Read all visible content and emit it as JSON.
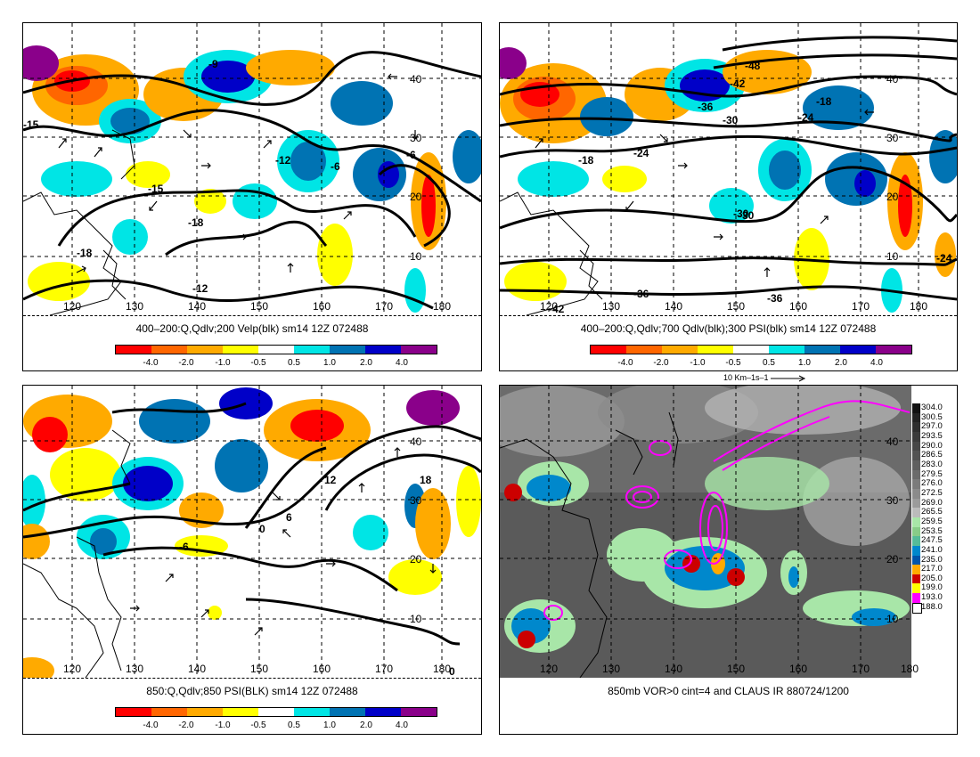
{
  "panels": [
    {
      "id": "p1",
      "caption": "400–200:Q,Qdlv;200 Velp(blk) sm14 12Z 072488",
      "lon_labels": [
        "120",
        "130",
        "140",
        "150",
        "160",
        "170",
        "180"
      ],
      "lat_labels": [
        "40",
        "30",
        "20",
        "10"
      ],
      "contour_labels": [
        "-15",
        "-9",
        "-12",
        "-6",
        "-15",
        "-18",
        "-18",
        "-12",
        "-6"
      ],
      "colorbar_labels": [
        "-4.0",
        "-2.0",
        "-1.0",
        "-0.5",
        "0.5",
        "1.0",
        "2.0",
        "4.0"
      ]
    },
    {
      "id": "p2",
      "caption": "400–200:Q,Qdlv;700 Qdlv(blk);300 PSI(blk) sm14 12Z 072488",
      "lon_labels": [
        "120",
        "130",
        "140",
        "150",
        "160",
        "170",
        "180"
      ],
      "lat_labels": [
        "40",
        "30",
        "20",
        "10"
      ],
      "contour_labels": [
        "-48",
        "-42",
        "-36",
        "-30",
        "-24",
        "-18",
        "-18",
        "-24",
        "-30",
        "-30",
        "-36",
        "-36",
        "-24",
        "-42"
      ],
      "colorbar_labels": [
        "-4.0",
        "-2.0",
        "-1.0",
        "-0.5",
        "0.5",
        "1.0",
        "2.0",
        "4.0"
      ],
      "ref_vector": "10 Km–1s–1"
    },
    {
      "id": "p3",
      "caption": "850:Q,Qdlv;850 PSI(BLK) sm14 12Z 072488",
      "lon_labels": [
        "120",
        "130",
        "140",
        "150",
        "160",
        "170",
        "180"
      ],
      "lat_labels": [
        "40",
        "30",
        "20",
        "10"
      ],
      "contour_labels": [
        "12",
        "18",
        "6",
        "0",
        "-6",
        "0"
      ],
      "colorbar_labels": [
        "-4.0",
        "-2.0",
        "-1.0",
        "-0.5",
        "0.5",
        "1.0",
        "2.0",
        "4.0"
      ]
    },
    {
      "id": "p4",
      "caption": "850mb VOR>0 cint=4 and CLAUS IR 880724/1200",
      "lon_labels": [
        "120",
        "130",
        "140",
        "150",
        "160",
        "170",
        "180"
      ],
      "lat_labels": [
        "40",
        "30",
        "20",
        "10"
      ],
      "ir_scale": [
        "304.0",
        "300.5",
        "297.0",
        "293.5",
        "290.0",
        "286.5",
        "283.0",
        "279.5",
        "276.0",
        "272.5",
        "269.0",
        "265.5",
        "259.5",
        "253.5",
        "247.5",
        "241.0",
        "235.0",
        "217.0",
        "205.0",
        "199.0",
        "193.0",
        "188.0"
      ]
    }
  ],
  "colors": {
    "bar": [
      "#ff0000",
      "#ff6600",
      "#ffaa00",
      "#ffff00",
      "#ffffff",
      "#00e5e5",
      "#0073b3",
      "#0000c8",
      "#8a008a"
    ],
    "ir": [
      "#111111",
      "#222222",
      "#2f2f2f",
      "#3b3b3b",
      "#474747",
      "#535353",
      "#5f5f5f",
      "#6b6b6b",
      "#7b7b7b",
      "#8b8b8b",
      "#9b9b9b",
      "#bbbbbb",
      "#a8e6a8",
      "#88cc88",
      "#55bb99",
      "#0088cc",
      "#0055aa",
      "#ffaa00",
      "#cc0000",
      "#ffff00",
      "#ff00ff",
      "#ffffff"
    ]
  }
}
